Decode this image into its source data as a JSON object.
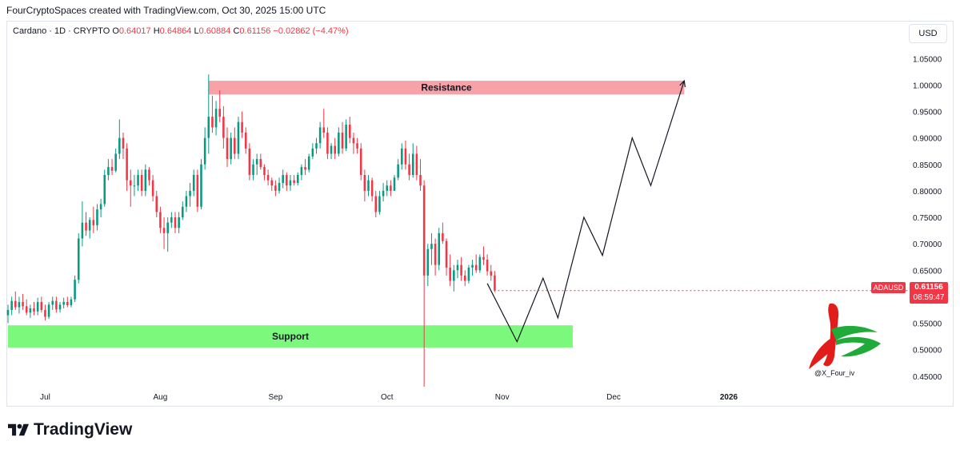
{
  "header": {
    "credit": "FourCryptoSpaces created with TradingView.com, Oct 30, 2025 15:00 UTC"
  },
  "legend": {
    "symbol": "Cardano · 1D · CRYPTO",
    "o_label": "O",
    "o": "0.64017",
    "h_label": "H",
    "h": "0.64864",
    "l_label": "L",
    "l": "0.60884",
    "c_label": "C",
    "c": "0.61156",
    "change": "−0.02862 (−4.47%)"
  },
  "currency": "USD",
  "price_tag": {
    "symbol": "ADAUSD",
    "price": "0.61156",
    "countdown": "08:59:47"
  },
  "brand": "TradingView",
  "watermark_handle": "@X_Four_iv",
  "colors": {
    "up": "#089981",
    "down": "#f23645",
    "support": "#7cf97c",
    "resistance": "#f7a1a8",
    "projection": "#131722"
  },
  "chart_data": {
    "type": "candlestick",
    "y_ticks": [
      "1.05000",
      "1.00000",
      "0.95000",
      "0.90000",
      "0.85000",
      "0.80000",
      "0.75000",
      "0.70000",
      "0.65000",
      "0.60000",
      "0.55000",
      "0.50000",
      "0.45000"
    ],
    "ylim": [
      0.43,
      1.07
    ],
    "x_labels": [
      {
        "label": "Jul",
        "date": "2025-07-01"
      },
      {
        "label": "Aug",
        "date": "2025-08-01"
      },
      {
        "label": "Sep",
        "date": "2025-09-01"
      },
      {
        "label": "Oct",
        "date": "2025-10-01"
      },
      {
        "label": "Nov",
        "date": "2025-11-01"
      },
      {
        "label": "Dec",
        "date": "2025-12-01"
      },
      {
        "label": "2026",
        "date": "2026-01-01"
      }
    ],
    "zones": [
      {
        "label": "Resistance",
        "from": "2025-08-14",
        "to": "2025-12-20",
        "low": 0.982,
        "high": 1.008
      },
      {
        "label": "Support",
        "from": "2025-06-21",
        "to": "2025-11-20",
        "low": 0.504,
        "high": 0.546
      }
    ],
    "projection": [
      {
        "date": "2025-10-28",
        "price": 0.625
      },
      {
        "date": "2025-11-05",
        "price": 0.515
      },
      {
        "date": "2025-11-12",
        "price": 0.635
      },
      {
        "date": "2025-11-16",
        "price": 0.56
      },
      {
        "date": "2025-11-23",
        "price": 0.75
      },
      {
        "date": "2025-11-28",
        "price": 0.678
      },
      {
        "date": "2025-12-06",
        "price": 0.9
      },
      {
        "date": "2025-12-11",
        "price": 0.81
      },
      {
        "date": "2025-12-20",
        "price": 1.008
      }
    ],
    "candles": [
      {
        "date": "2025-06-21",
        "o": 0.565,
        "h": 0.585,
        "l": 0.55,
        "c": 0.575
      },
      {
        "date": "2025-06-22",
        "o": 0.575,
        "h": 0.6,
        "l": 0.565,
        "c": 0.592
      },
      {
        "date": "2025-06-23",
        "o": 0.592,
        "h": 0.61,
        "l": 0.575,
        "c": 0.58
      },
      {
        "date": "2025-06-24",
        "o": 0.58,
        "h": 0.6,
        "l": 0.568,
        "c": 0.59
      },
      {
        "date": "2025-06-25",
        "o": 0.59,
        "h": 0.605,
        "l": 0.575,
        "c": 0.582
      },
      {
        "date": "2025-06-26",
        "o": 0.582,
        "h": 0.595,
        "l": 0.565,
        "c": 0.57
      },
      {
        "date": "2025-06-27",
        "o": 0.57,
        "h": 0.585,
        "l": 0.56,
        "c": 0.578
      },
      {
        "date": "2025-06-28",
        "o": 0.578,
        "h": 0.59,
        "l": 0.565,
        "c": 0.572
      },
      {
        "date": "2025-06-29",
        "o": 0.572,
        "h": 0.598,
        "l": 0.565,
        "c": 0.59
      },
      {
        "date": "2025-06-30",
        "o": 0.59,
        "h": 0.6,
        "l": 0.57,
        "c": 0.575
      },
      {
        "date": "2025-07-01",
        "o": 0.575,
        "h": 0.585,
        "l": 0.555,
        "c": 0.562
      },
      {
        "date": "2025-07-02",
        "o": 0.562,
        "h": 0.59,
        "l": 0.558,
        "c": 0.585
      },
      {
        "date": "2025-07-03",
        "o": 0.585,
        "h": 0.6,
        "l": 0.575,
        "c": 0.592
      },
      {
        "date": "2025-07-04",
        "o": 0.592,
        "h": 0.6,
        "l": 0.57,
        "c": 0.576
      },
      {
        "date": "2025-07-05",
        "o": 0.576,
        "h": 0.59,
        "l": 0.57,
        "c": 0.585
      },
      {
        "date": "2025-07-06",
        "o": 0.585,
        "h": 0.598,
        "l": 0.578,
        "c": 0.59
      },
      {
        "date": "2025-07-07",
        "o": 0.59,
        "h": 0.6,
        "l": 0.58,
        "c": 0.584
      },
      {
        "date": "2025-07-08",
        "o": 0.584,
        "h": 0.6,
        "l": 0.58,
        "c": 0.595
      },
      {
        "date": "2025-07-09",
        "o": 0.595,
        "h": 0.64,
        "l": 0.59,
        "c": 0.632
      },
      {
        "date": "2025-07-10",
        "o": 0.632,
        "h": 0.72,
        "l": 0.625,
        "c": 0.71
      },
      {
        "date": "2025-07-11",
        "o": 0.71,
        "h": 0.78,
        "l": 0.695,
        "c": 0.74
      },
      {
        "date": "2025-07-12",
        "o": 0.74,
        "h": 0.76,
        "l": 0.715,
        "c": 0.725
      },
      {
        "date": "2025-07-13",
        "o": 0.725,
        "h": 0.75,
        "l": 0.71,
        "c": 0.745
      },
      {
        "date": "2025-07-14",
        "o": 0.745,
        "h": 0.77,
        "l": 0.72,
        "c": 0.735
      },
      {
        "date": "2025-07-15",
        "o": 0.735,
        "h": 0.775,
        "l": 0.725,
        "c": 0.765
      },
      {
        "date": "2025-07-16",
        "o": 0.765,
        "h": 0.785,
        "l": 0.75,
        "c": 0.775
      },
      {
        "date": "2025-07-17",
        "o": 0.775,
        "h": 0.84,
        "l": 0.77,
        "c": 0.83
      },
      {
        "date": "2025-07-18",
        "o": 0.83,
        "h": 0.86,
        "l": 0.82,
        "c": 0.845
      },
      {
        "date": "2025-07-19",
        "o": 0.845,
        "h": 0.86,
        "l": 0.83,
        "c": 0.838
      },
      {
        "date": "2025-07-20",
        "o": 0.838,
        "h": 0.88,
        "l": 0.835,
        "c": 0.87
      },
      {
        "date": "2025-07-21",
        "o": 0.87,
        "h": 0.935,
        "l": 0.86,
        "c": 0.9
      },
      {
        "date": "2025-07-22",
        "o": 0.9,
        "h": 0.91,
        "l": 0.86,
        "c": 0.88
      },
      {
        "date": "2025-07-23",
        "o": 0.88,
        "h": 0.89,
        "l": 0.8,
        "c": 0.82
      },
      {
        "date": "2025-07-24",
        "o": 0.82,
        "h": 0.84,
        "l": 0.77,
        "c": 0.81
      },
      {
        "date": "2025-07-25",
        "o": 0.81,
        "h": 0.83,
        "l": 0.79,
        "c": 0.81
      },
      {
        "date": "2025-07-26",
        "o": 0.81,
        "h": 0.84,
        "l": 0.8,
        "c": 0.83
      },
      {
        "date": "2025-07-27",
        "o": 0.83,
        "h": 0.84,
        "l": 0.79,
        "c": 0.8
      },
      {
        "date": "2025-07-28",
        "o": 0.8,
        "h": 0.85,
        "l": 0.79,
        "c": 0.84
      },
      {
        "date": "2025-07-29",
        "o": 0.84,
        "h": 0.845,
        "l": 0.81,
        "c": 0.82
      },
      {
        "date": "2025-07-30",
        "o": 0.82,
        "h": 0.83,
        "l": 0.78,
        "c": 0.79
      },
      {
        "date": "2025-07-31",
        "o": 0.79,
        "h": 0.8,
        "l": 0.75,
        "c": 0.76
      },
      {
        "date": "2025-08-01",
        "o": 0.76,
        "h": 0.77,
        "l": 0.72,
        "c": 0.73
      },
      {
        "date": "2025-08-02",
        "o": 0.73,
        "h": 0.75,
        "l": 0.69,
        "c": 0.72
      },
      {
        "date": "2025-08-03",
        "o": 0.72,
        "h": 0.75,
        "l": 0.685,
        "c": 0.74
      },
      {
        "date": "2025-08-04",
        "o": 0.74,
        "h": 0.76,
        "l": 0.73,
        "c": 0.75
      },
      {
        "date": "2025-08-05",
        "o": 0.75,
        "h": 0.76,
        "l": 0.72,
        "c": 0.73
      },
      {
        "date": "2025-08-06",
        "o": 0.73,
        "h": 0.76,
        "l": 0.72,
        "c": 0.75
      },
      {
        "date": "2025-08-07",
        "o": 0.75,
        "h": 0.78,
        "l": 0.745,
        "c": 0.77
      },
      {
        "date": "2025-08-08",
        "o": 0.77,
        "h": 0.8,
        "l": 0.76,
        "c": 0.79
      },
      {
        "date": "2025-08-09",
        "o": 0.79,
        "h": 0.815,
        "l": 0.77,
        "c": 0.8
      },
      {
        "date": "2025-08-10",
        "o": 0.8,
        "h": 0.84,
        "l": 0.79,
        "c": 0.83
      },
      {
        "date": "2025-08-11",
        "o": 0.83,
        "h": 0.84,
        "l": 0.76,
        "c": 0.77
      },
      {
        "date": "2025-08-12",
        "o": 0.77,
        "h": 0.86,
        "l": 0.765,
        "c": 0.85
      },
      {
        "date": "2025-08-13",
        "o": 0.85,
        "h": 0.92,
        "l": 0.84,
        "c": 0.9
      },
      {
        "date": "2025-08-14",
        "o": 0.9,
        "h": 1.02,
        "l": 0.87,
        "c": 0.94
      },
      {
        "date": "2025-08-15",
        "o": 0.94,
        "h": 0.98,
        "l": 0.91,
        "c": 0.92
      },
      {
        "date": "2025-08-16",
        "o": 0.92,
        "h": 0.97,
        "l": 0.905,
        "c": 0.955
      },
      {
        "date": "2025-08-17",
        "o": 0.955,
        "h": 0.99,
        "l": 0.93,
        "c": 0.94
      },
      {
        "date": "2025-08-18",
        "o": 0.94,
        "h": 0.96,
        "l": 0.88,
        "c": 0.9
      },
      {
        "date": "2025-08-19",
        "o": 0.9,
        "h": 0.92,
        "l": 0.845,
        "c": 0.86
      },
      {
        "date": "2025-08-20",
        "o": 0.86,
        "h": 0.91,
        "l": 0.85,
        "c": 0.9
      },
      {
        "date": "2025-08-21",
        "o": 0.9,
        "h": 0.92,
        "l": 0.86,
        "c": 0.87
      },
      {
        "date": "2025-08-22",
        "o": 0.87,
        "h": 0.94,
        "l": 0.86,
        "c": 0.93
      },
      {
        "date": "2025-08-23",
        "o": 0.93,
        "h": 0.95,
        "l": 0.9,
        "c": 0.91
      },
      {
        "date": "2025-08-24",
        "o": 0.91,
        "h": 0.92,
        "l": 0.87,
        "c": 0.88
      },
      {
        "date": "2025-08-25",
        "o": 0.88,
        "h": 0.89,
        "l": 0.82,
        "c": 0.83
      },
      {
        "date": "2025-08-26",
        "o": 0.83,
        "h": 0.86,
        "l": 0.82,
        "c": 0.85
      },
      {
        "date": "2025-08-27",
        "o": 0.85,
        "h": 0.87,
        "l": 0.83,
        "c": 0.86
      },
      {
        "date": "2025-08-28",
        "o": 0.86,
        "h": 0.87,
        "l": 0.84,
        "c": 0.845
      },
      {
        "date": "2025-08-29",
        "o": 0.845,
        "h": 0.85,
        "l": 0.82,
        "c": 0.83
      },
      {
        "date": "2025-08-30",
        "o": 0.83,
        "h": 0.84,
        "l": 0.81,
        "c": 0.82
      },
      {
        "date": "2025-08-31",
        "o": 0.82,
        "h": 0.825,
        "l": 0.8,
        "c": 0.81
      },
      {
        "date": "2025-09-01",
        "o": 0.81,
        "h": 0.82,
        "l": 0.79,
        "c": 0.8
      },
      {
        "date": "2025-09-02",
        "o": 0.8,
        "h": 0.825,
        "l": 0.795,
        "c": 0.815
      },
      {
        "date": "2025-09-03",
        "o": 0.815,
        "h": 0.84,
        "l": 0.805,
        "c": 0.83
      },
      {
        "date": "2025-09-04",
        "o": 0.83,
        "h": 0.835,
        "l": 0.8,
        "c": 0.81
      },
      {
        "date": "2025-09-05",
        "o": 0.81,
        "h": 0.83,
        "l": 0.8,
        "c": 0.82
      },
      {
        "date": "2025-09-06",
        "o": 0.82,
        "h": 0.83,
        "l": 0.81,
        "c": 0.815
      },
      {
        "date": "2025-09-07",
        "o": 0.815,
        "h": 0.835,
        "l": 0.81,
        "c": 0.83
      },
      {
        "date": "2025-09-08",
        "o": 0.83,
        "h": 0.85,
        "l": 0.82,
        "c": 0.845
      },
      {
        "date": "2025-09-09",
        "o": 0.845,
        "h": 0.86,
        "l": 0.83,
        "c": 0.84
      },
      {
        "date": "2025-09-10",
        "o": 0.84,
        "h": 0.87,
        "l": 0.835,
        "c": 0.865
      },
      {
        "date": "2025-09-11",
        "o": 0.865,
        "h": 0.89,
        "l": 0.86,
        "c": 0.88
      },
      {
        "date": "2025-09-12",
        "o": 0.88,
        "h": 0.9,
        "l": 0.87,
        "c": 0.89
      },
      {
        "date": "2025-09-13",
        "o": 0.89,
        "h": 0.93,
        "l": 0.88,
        "c": 0.92
      },
      {
        "date": "2025-09-14",
        "o": 0.92,
        "h": 0.955,
        "l": 0.9,
        "c": 0.91
      },
      {
        "date": "2025-09-15",
        "o": 0.91,
        "h": 0.92,
        "l": 0.86,
        "c": 0.87
      },
      {
        "date": "2025-09-16",
        "o": 0.87,
        "h": 0.89,
        "l": 0.86,
        "c": 0.885
      },
      {
        "date": "2025-09-17",
        "o": 0.885,
        "h": 0.9,
        "l": 0.86,
        "c": 0.87
      },
      {
        "date": "2025-09-18",
        "o": 0.87,
        "h": 0.92,
        "l": 0.865,
        "c": 0.91
      },
      {
        "date": "2025-09-19",
        "o": 0.91,
        "h": 0.93,
        "l": 0.87,
        "c": 0.88
      },
      {
        "date": "2025-09-20",
        "o": 0.88,
        "h": 0.935,
        "l": 0.875,
        "c": 0.925
      },
      {
        "date": "2025-09-21",
        "o": 0.925,
        "h": 0.94,
        "l": 0.89,
        "c": 0.9
      },
      {
        "date": "2025-09-22",
        "o": 0.9,
        "h": 0.91,
        "l": 0.87,
        "c": 0.89
      },
      {
        "date": "2025-09-23",
        "o": 0.89,
        "h": 0.9,
        "l": 0.87,
        "c": 0.88
      },
      {
        "date": "2025-09-24",
        "o": 0.88,
        "h": 0.89,
        "l": 0.82,
        "c": 0.83
      },
      {
        "date": "2025-09-25",
        "o": 0.83,
        "h": 0.84,
        "l": 0.78,
        "c": 0.8
      },
      {
        "date": "2025-09-26",
        "o": 0.8,
        "h": 0.83,
        "l": 0.79,
        "c": 0.82
      },
      {
        "date": "2025-09-27",
        "o": 0.82,
        "h": 0.825,
        "l": 0.78,
        "c": 0.79
      },
      {
        "date": "2025-09-28",
        "o": 0.79,
        "h": 0.8,
        "l": 0.75,
        "c": 0.76
      },
      {
        "date": "2025-09-29",
        "o": 0.76,
        "h": 0.8,
        "l": 0.755,
        "c": 0.79
      },
      {
        "date": "2025-09-30",
        "o": 0.79,
        "h": 0.815,
        "l": 0.78,
        "c": 0.8
      },
      {
        "date": "2025-10-01",
        "o": 0.8,
        "h": 0.82,
        "l": 0.79,
        "c": 0.81
      },
      {
        "date": "2025-10-02",
        "o": 0.81,
        "h": 0.82,
        "l": 0.79,
        "c": 0.8
      },
      {
        "date": "2025-10-03",
        "o": 0.8,
        "h": 0.83,
        "l": 0.8,
        "c": 0.825
      },
      {
        "date": "2025-10-04",
        "o": 0.825,
        "h": 0.86,
        "l": 0.82,
        "c": 0.85
      },
      {
        "date": "2025-10-05",
        "o": 0.85,
        "h": 0.89,
        "l": 0.84,
        "c": 0.88
      },
      {
        "date": "2025-10-06",
        "o": 0.88,
        "h": 0.895,
        "l": 0.84,
        "c": 0.85
      },
      {
        "date": "2025-10-07",
        "o": 0.85,
        "h": 0.87,
        "l": 0.82,
        "c": 0.83
      },
      {
        "date": "2025-10-08",
        "o": 0.83,
        "h": 0.89,
        "l": 0.825,
        "c": 0.87
      },
      {
        "date": "2025-10-09",
        "o": 0.87,
        "h": 0.885,
        "l": 0.82,
        "c": 0.83
      },
      {
        "date": "2025-10-10",
        "o": 0.83,
        "h": 0.86,
        "l": 0.8,
        "c": 0.81
      },
      {
        "date": "2025-10-11",
        "o": 0.81,
        "h": 0.82,
        "l": 0.43,
        "c": 0.64
      },
      {
        "date": "2025-10-12",
        "o": 0.64,
        "h": 0.7,
        "l": 0.62,
        "c": 0.69
      },
      {
        "date": "2025-10-13",
        "o": 0.69,
        "h": 0.72,
        "l": 0.66,
        "c": 0.7
      },
      {
        "date": "2025-10-14",
        "o": 0.7,
        "h": 0.71,
        "l": 0.64,
        "c": 0.66
      },
      {
        "date": "2025-10-15",
        "o": 0.66,
        "h": 0.73,
        "l": 0.65,
        "c": 0.72
      },
      {
        "date": "2025-10-16",
        "o": 0.72,
        "h": 0.74,
        "l": 0.7,
        "c": 0.705
      },
      {
        "date": "2025-10-17",
        "o": 0.705,
        "h": 0.71,
        "l": 0.64,
        "c": 0.655
      },
      {
        "date": "2025-10-18",
        "o": 0.655,
        "h": 0.68,
        "l": 0.62,
        "c": 0.63
      },
      {
        "date": "2025-10-19",
        "o": 0.63,
        "h": 0.66,
        "l": 0.61,
        "c": 0.65
      },
      {
        "date": "2025-10-20",
        "o": 0.65,
        "h": 0.67,
        "l": 0.635,
        "c": 0.66
      },
      {
        "date": "2025-10-21",
        "o": 0.66,
        "h": 0.675,
        "l": 0.63,
        "c": 0.64
      },
      {
        "date": "2025-10-22",
        "o": 0.64,
        "h": 0.65,
        "l": 0.62,
        "c": 0.63
      },
      {
        "date": "2025-10-23",
        "o": 0.63,
        "h": 0.66,
        "l": 0.625,
        "c": 0.655
      },
      {
        "date": "2025-10-24",
        "o": 0.655,
        "h": 0.67,
        "l": 0.64,
        "c": 0.66
      },
      {
        "date": "2025-10-25",
        "o": 0.66,
        "h": 0.68,
        "l": 0.645,
        "c": 0.65
      },
      {
        "date": "2025-10-26",
        "o": 0.65,
        "h": 0.68,
        "l": 0.645,
        "c": 0.675
      },
      {
        "date": "2025-10-27",
        "o": 0.675,
        "h": 0.695,
        "l": 0.66,
        "c": 0.67
      },
      {
        "date": "2025-10-28",
        "o": 0.67,
        "h": 0.68,
        "l": 0.64,
        "c": 0.648
      },
      {
        "date": "2025-10-29",
        "o": 0.648,
        "h": 0.66,
        "l": 0.63,
        "c": 0.64
      },
      {
        "date": "2025-10-30",
        "o": 0.64017,
        "h": 0.64864,
        "l": 0.60884,
        "c": 0.61156
      }
    ]
  }
}
